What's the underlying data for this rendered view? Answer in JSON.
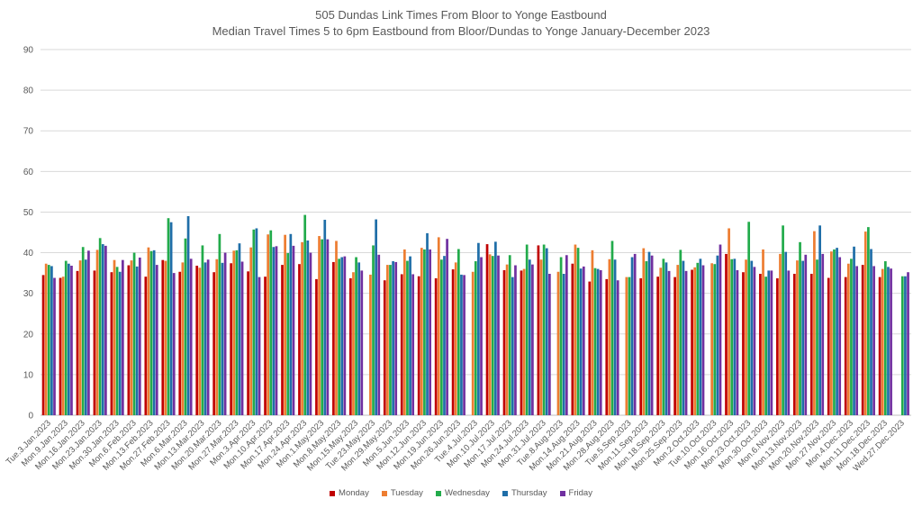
{
  "chart_data": {
    "type": "bar",
    "title": "505 Dundas Link Times From Bloor to Yonge Eastbound",
    "subtitle": "Median Travel Times 5 to 6pm Eastbound from Bloor/Dundas to Yonge January-December 2023",
    "ylim": [
      0,
      90
    ],
    "yticks": [
      0,
      10,
      20,
      30,
      40,
      50,
      60,
      70,
      80,
      90
    ],
    "grid": true,
    "legend_position": "bottom",
    "categories": [
      "Tue.3.Jan.2023",
      "Mon.9.Jan.2023",
      "Mon.16.Jan.2023",
      "Mon.23.Jan.2023",
      "Mon.30.Jan.2023",
      "Mon.6.Feb.2023",
      "Mon.13.Feb.2023",
      "Mon.27.Feb.2023",
      "Mon.6.Mar.2023",
      "Mon.13.Mar.2023",
      "Mon.20.Mar.2023",
      "Mon.27.Mar.2023",
      "Mon.3.Apr.2023",
      "Mon.10.Apr.2023",
      "Mon.17.Apr.2023",
      "Mon.24.Apr.2023",
      "Mon.1.May.2023",
      "Mon.8.May.2023",
      "Mon.15.May.2023",
      "Tue.23.May.2023",
      "Mon.29.May.2023",
      "Mon.5.Jun.2023",
      "Mon.12.Jun.2023",
      "Mon.19.Jun.2023",
      "Mon.26.Jun.2023",
      "Tue.4.Jul.2023",
      "Mon.10.Jul.2023",
      "Mon.17.Jul.2023",
      "Mon.24.Jul.2023",
      "Mon.31.Jul.2023",
      "Tue.8.Aug.2023",
      "Mon.14.Aug.2023",
      "Mon.21.Aug.2023",
      "Mon.28.Aug.2023",
      "Tue.5.Sep.2023",
      "Mon.11.Sep.2023",
      "Mon.18.Sep.2023",
      "Mon.25.Sep.2023",
      "Mon.2.Oct.2023",
      "Tue.10.Oct.2023",
      "Mon.16.Oct.2023",
      "Mon.23.Oct.2023",
      "Mon.30.Oct.2023",
      "Mon.6.Nov.2023",
      "Mon.13.Nov.2023",
      "Mon.20.Nov.2023",
      "Mon.27.Nov.2023",
      "Mon.4.Dec.2023",
      "Mon.11.Dec.2023",
      "Mon.18.Dec.2023",
      "Wed.27.Dec.2023"
    ],
    "series": [
      {
        "name": "Monday",
        "color": "#c00000",
        "values": [
          34.5,
          33.8,
          35.5,
          35.6,
          35.2,
          36.9,
          34.1,
          38.2,
          35.3,
          36.8,
          35.2,
          37.4,
          35.4,
          34.1,
          37.0,
          37.2,
          33.5,
          37.7,
          33.7,
          null,
          33.2,
          34.7,
          34.2,
          33.7,
          35.9,
          null,
          42.1,
          35.7,
          35.6,
          41.8,
          null,
          37.3,
          32.9,
          33.5,
          null,
          33.7,
          34.1,
          34.0,
          35.8,
          null,
          39.7,
          35.2,
          34.8,
          33.7,
          34.8,
          34.8,
          33.8,
          34.0,
          37.0,
          34.0,
          null
        ]
      },
      {
        "name": "Tuesday",
        "color": "#ed7d31",
        "values": [
          37.3,
          34.1,
          38.1,
          40.7,
          38.2,
          38.1,
          41.3,
          38.0,
          37.6,
          36.3,
          38.4,
          40.5,
          41.3,
          44.5,
          44.4,
          42.6,
          44.1,
          42.9,
          35.2,
          34.6,
          37.0,
          40.8,
          41.2,
          43.8,
          37.6,
          35.3,
          39.6,
          37.1,
          36.0,
          38.3,
          35.3,
          42.0,
          40.6,
          38.4,
          34.0,
          41.1,
          36.3,
          37.0,
          36.4,
          37.4,
          46.0,
          38.3,
          40.8,
          39.7,
          38.1,
          45.3,
          40.3,
          37.3,
          45.2,
          36.0,
          null
        ]
      },
      {
        "name": "Wednesday",
        "color": "#22ab4b",
        "values": [
          37.0,
          38.0,
          41.4,
          43.6,
          36.5,
          40.0,
          40.4,
          48.5,
          43.5,
          41.8,
          44.6,
          40.6,
          45.7,
          45.5,
          39.9,
          49.3,
          43.3,
          38.5,
          38.9,
          41.8,
          37.0,
          38.0,
          40.8,
          38.3,
          40.9,
          37.9,
          39.2,
          39.4,
          42.0,
          42.0,
          38.9,
          41.2,
          36.2,
          42.9,
          34.0,
          37.9,
          38.5,
          40.7,
          37.5,
          37.2,
          38.4,
          47.6,
          34.1,
          46.7,
          42.6,
          38.3,
          40.8,
          38.5,
          46.3,
          37.9,
          34.2
        ]
      },
      {
        "name": "Thursday",
        "color": "#1f6ea8",
        "values": [
          36.7,
          37.3,
          38.3,
          42.1,
          35.3,
          36.6,
          40.6,
          47.5,
          49.0,
          37.6,
          37.5,
          42.3,
          46.0,
          41.4,
          44.6,
          43.0,
          48.1,
          38.9,
          37.6,
          48.2,
          37.9,
          39.1,
          44.8,
          39.2,
          34.6,
          42.4,
          42.7,
          34.0,
          38.3,
          41.1,
          34.8,
          36.1,
          36.0,
          38.3,
          38.9,
          40.2,
          37.6,
          38.0,
          38.5,
          39.3,
          38.5,
          38.0,
          35.6,
          40.2,
          38.0,
          46.7,
          41.2,
          41.5,
          40.9,
          36.5,
          34.2
        ]
      },
      {
        "name": "Friday",
        "color": "#7030a0",
        "values": [
          33.8,
          36.8,
          40.5,
          41.7,
          38.2,
          38.8,
          37.0,
          35.0,
          38.5,
          38.3,
          40.0,
          37.8,
          34.0,
          41.6,
          41.7,
          40.0,
          43.3,
          39.1,
          35.6,
          39.5,
          37.7,
          34.7,
          40.8,
          43.4,
          34.5,
          38.9,
          39.3,
          36.9,
          37.1,
          34.8,
          39.4,
          36.6,
          35.7,
          33.2,
          39.7,
          39.3,
          35.5,
          35.5,
          36.9,
          42.0,
          35.7,
          36.5,
          35.6,
          35.6,
          39.5,
          39.7,
          38.9,
          36.7,
          36.7,
          36.1,
          35.2
        ]
      }
    ]
  }
}
